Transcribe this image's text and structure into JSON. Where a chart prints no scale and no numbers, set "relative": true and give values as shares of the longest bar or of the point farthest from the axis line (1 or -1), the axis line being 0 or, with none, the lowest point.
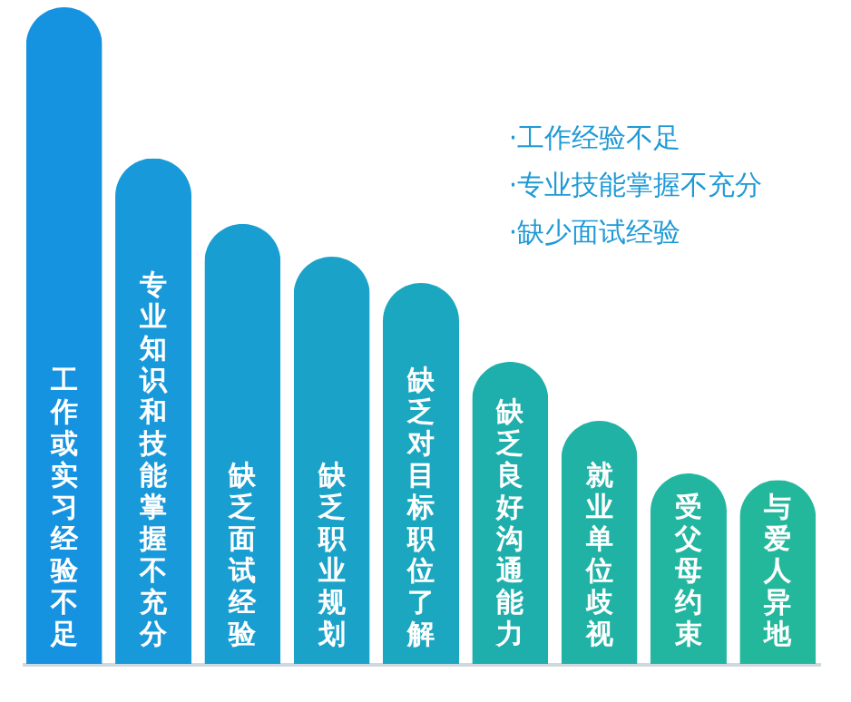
{
  "chart_data": {
    "type": "bar",
    "relative": true,
    "tick_labels": false,
    "grid": false,
    "categories": [
      "工作或实习经验不足",
      "专业知识和技能掌握不充分",
      "缺乏面试经验",
      "缺乏职业规划",
      "缺乏对目标职位了解",
      "缺乏良好沟通能力",
      "就业单位歧视",
      "受父母约束",
      "与爱人异地"
    ],
    "values": [
      1,
      0.77,
      0.67,
      0.62,
      0.58,
      0.46,
      0.37,
      0.29,
      0.28
    ],
    "colors": [
      "#1592e0",
      "#1899da",
      "#199ed2",
      "#1aa2c9",
      "#1ba7bf",
      "#1eaeab",
      "#20b2a5",
      "#22b6a0",
      "#23b89c"
    ],
    "annotations": [
      "·工作经验不足",
      "·专业技能掌握不充分",
      "·缺少面试经验"
    ]
  }
}
